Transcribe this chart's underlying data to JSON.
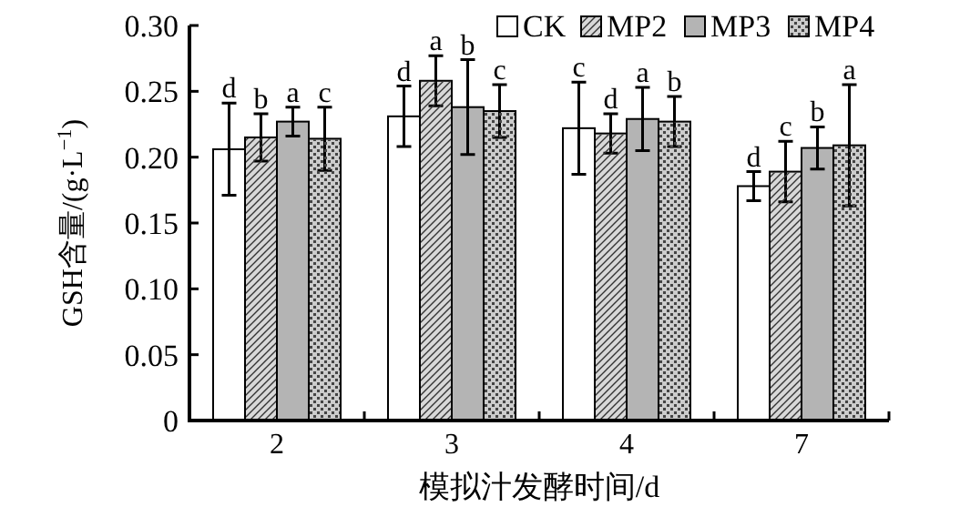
{
  "chart_data": {
    "type": "bar",
    "xlabel": "模拟汁发酵时间/d",
    "ylabel": "GSH含量/(g·L$^{−1}$)",
    "categories": [
      "2",
      "3",
      "4",
      "7"
    ],
    "series": [
      {
        "name": "CK",
        "color": "#ffffff",
        "values": [
          0.206,
          0.231,
          0.222,
          0.178
        ],
        "errors": [
          0.035,
          0.023,
          0.035,
          0.011
        ],
        "value_labels": [
          "d",
          "d",
          "c",
          "d"
        ]
      },
      {
        "name": "MP2",
        "color": "#d8d8d8",
        "values": [
          0.215,
          0.258,
          0.218,
          0.189
        ],
        "errors": [
          0.018,
          0.019,
          0.015,
          0.023
        ],
        "value_labels": [
          "b",
          "a",
          "d",
          "c"
        ]
      },
      {
        "name": "MP3",
        "color": "#b4b4b4",
        "values": [
          0.227,
          0.238,
          0.229,
          0.207
        ],
        "errors": [
          0.011,
          0.036,
          0.024,
          0.016
        ],
        "value_labels": [
          "a",
          "b",
          "a",
          "b"
        ]
      },
      {
        "name": "MP4",
        "color": "#cccccc",
        "values": [
          0.214,
          0.235,
          0.227,
          0.209
        ],
        "errors": [
          0.024,
          0.02,
          0.019,
          0.046
        ],
        "value_labels": [
          "c",
          "c",
          "b",
          "a"
        ]
      }
    ],
    "ylim": [
      0,
      0.3
    ],
    "yticks": [
      0,
      0.05,
      {
        "value": 0.1,
        "label": "0.10"
      },
      0.15,
      {
        "value": 0.2,
        "label": "0.20"
      },
      0.25,
      {
        "value": 0.3,
        "label": "0.30"
      }
    ],
    "legend": "top right",
    "grid": false
  }
}
